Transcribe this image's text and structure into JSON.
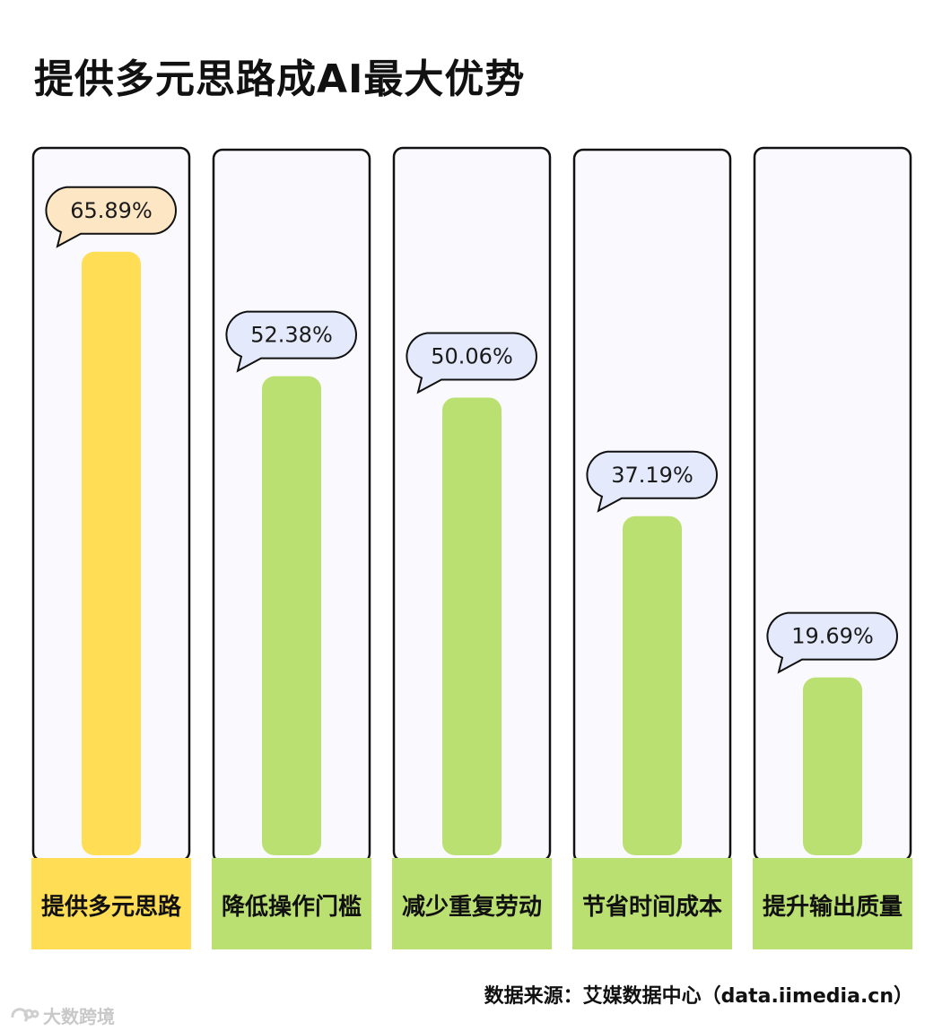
{
  "title": "提供多元思路成AI最大优势",
  "source": "数据来源：艾媒数据中心（data.iimedia.cn）",
  "watermark": "大数跨境",
  "colors": {
    "highlight_bar": "#FFDD55",
    "highlight_bubble": "#FCE6C4",
    "bar": "#BBE072",
    "bubble": "#E4EAFB",
    "panel_bg": "#FAF9FD",
    "outline": "#111111"
  },
  "chart_data": {
    "type": "bar",
    "categories": [
      "提供多元思路",
      "降低操作门槛",
      "减少重复劳动",
      "节省时间成本",
      "提升输出质量"
    ],
    "values": [
      65.89,
      52.38,
      50.06,
      37.19,
      19.69
    ],
    "value_labels": [
      "65.89%",
      "52.38%",
      "50.06%",
      "37.19%",
      "19.69%"
    ],
    "highlight_index": 0,
    "unit": "%"
  }
}
